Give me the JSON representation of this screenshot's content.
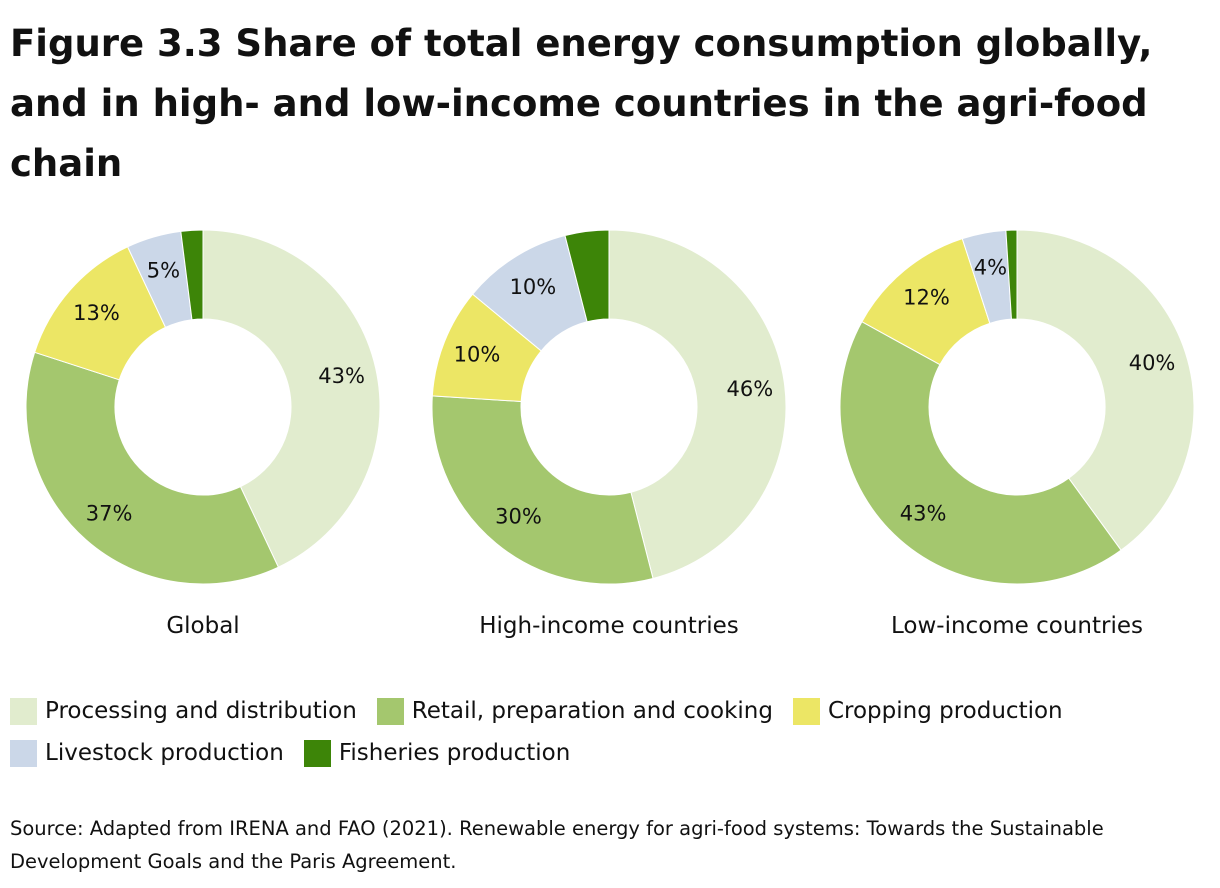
{
  "title": "Figure 3.3 Share of total energy consumption globally, and in high- and low-income countries in the agri-food chain",
  "source": "Source: Adapted from IRENA and FAO (2021). Renewable energy for agri-food systems: Towards the Sustainable Development Goals and the Paris Agreement.",
  "colors": {
    "processing": "#e1ecce",
    "retail": "#a4c76e",
    "cropping": "#ece665",
    "livestock": "#cbd7e8",
    "fisheries": "#3d8508"
  },
  "legend": {
    "row1": [
      {
        "key": "processing",
        "label": "Processing and distribution"
      },
      {
        "key": "retail",
        "label": "Retail, preparation and cooking"
      },
      {
        "key": "cropping",
        "label": "Cropping production"
      }
    ],
    "row2": [
      {
        "key": "livestock",
        "label": "Livestock production"
      },
      {
        "key": "fisheries",
        "label": "Fisheries production"
      }
    ]
  },
  "chart_data": [
    {
      "type": "pie",
      "title": "Global",
      "slices": [
        {
          "key": "processing",
          "label": "Processing and distribution",
          "value": 43,
          "data_label": "43%"
        },
        {
          "key": "retail",
          "label": "Retail, preparation and cooking",
          "value": 37,
          "data_label": "37%"
        },
        {
          "key": "cropping",
          "label": "Cropping production",
          "value": 13,
          "data_label": "13%"
        },
        {
          "key": "livestock",
          "label": "Livestock production",
          "value": 5,
          "data_label": "5%"
        },
        {
          "key": "fisheries",
          "label": "Fisheries production",
          "value": 2,
          "data_label": ""
        }
      ]
    },
    {
      "type": "pie",
      "title": "High-income countries",
      "slices": [
        {
          "key": "processing",
          "label": "Processing and distribution",
          "value": 46,
          "data_label": "46%"
        },
        {
          "key": "retail",
          "label": "Retail, preparation and cooking",
          "value": 30,
          "data_label": "30%"
        },
        {
          "key": "cropping",
          "label": "Cropping production",
          "value": 10,
          "data_label": "10%"
        },
        {
          "key": "livestock",
          "label": "Livestock production",
          "value": 10,
          "data_label": "10%"
        },
        {
          "key": "fisheries",
          "label": "Fisheries production",
          "value": 4,
          "data_label": ""
        }
      ]
    },
    {
      "type": "pie",
      "title": "Low-income countries",
      "slices": [
        {
          "key": "processing",
          "label": "Processing and distribution",
          "value": 40,
          "data_label": "40%"
        },
        {
          "key": "retail",
          "label": "Retail, preparation and cooking",
          "value": 43,
          "data_label": "43%"
        },
        {
          "key": "cropping",
          "label": "Cropping production",
          "value": 12,
          "data_label": "12%"
        },
        {
          "key": "livestock",
          "label": "Livestock production",
          "value": 4,
          "data_label": "4%"
        },
        {
          "key": "fisheries",
          "label": "Fisheries production",
          "value": 1,
          "data_label": ""
        }
      ]
    }
  ]
}
